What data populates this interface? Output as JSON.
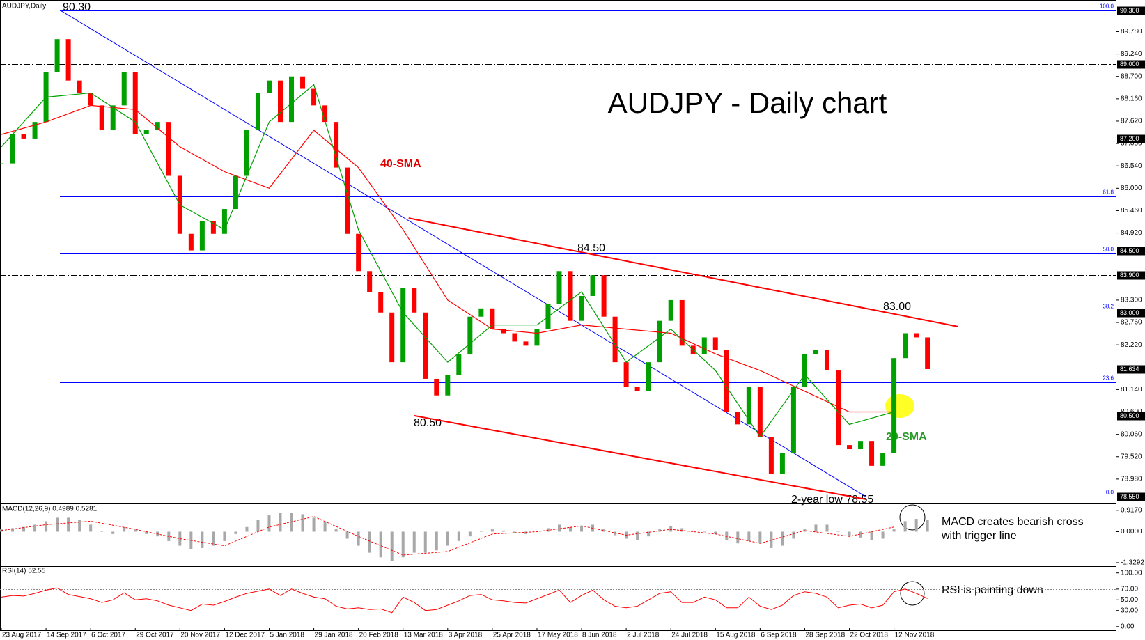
{
  "chart_data": [
    {
      "type": "candlestick",
      "title": "AUDJPY - Daily chart",
      "label": "AUDJPY,Daily",
      "x": [
        0,
        4,
        8,
        12,
        16,
        20,
        24,
        28,
        32,
        36,
        40,
        44,
        48,
        52,
        56,
        60,
        64,
        68,
        72,
        76,
        80,
        84,
        88,
        92,
        96,
        100,
        104,
        108,
        112,
        116,
        120,
        124,
        128,
        132,
        136,
        140,
        144,
        148,
        152,
        156,
        160,
        164,
        168,
        172,
        176,
        180,
        184,
        188,
        192,
        196,
        200,
        204,
        208,
        212,
        216,
        220,
        224,
        228,
        232,
        236,
        240,
        244,
        248,
        252,
        256,
        260,
        264,
        268,
        272,
        276,
        280,
        284,
        288,
        292,
        296,
        300,
        304,
        308,
        312,
        316,
        320,
        324,
        328,
        332
      ],
      "close": [
        86.6,
        87.3,
        87.2,
        87.6,
        88.8,
        89.6,
        88.6,
        88.3,
        88.0,
        87.4,
        88.0,
        88.8,
        87.3,
        87.4,
        87.6,
        86.3,
        84.9,
        84.5,
        85.2,
        84.9,
        85.5,
        86.3,
        87.4,
        88.3,
        88.6,
        87.6,
        88.7,
        88.4,
        88.0,
        87.6,
        86.5,
        84.9,
        84.0,
        83.5,
        83.0,
        81.8,
        83.6,
        83.0,
        81.4,
        81.0,
        81.5,
        82.0,
        82.9,
        83.1,
        82.6,
        82.5,
        82.3,
        82.2,
        82.6,
        83.2,
        84.0,
        82.8,
        83.4,
        83.9,
        82.9,
        81.8,
        81.2,
        81.1,
        81.8,
        82.8,
        83.3,
        82.2,
        82.0,
        82.4,
        82.1,
        80.6,
        80.3,
        81.2,
        80.0,
        79.1,
        79.6,
        81.2,
        82.0,
        82.1,
        81.6,
        79.8,
        79.7,
        79.9,
        79.3,
        79.6,
        81.9,
        82.5,
        82.4,
        81.634
      ],
      "up_color": "#00a000",
      "down_color": "#ff0000",
      "xlim": [
        0,
        400
      ],
      "ylim": [
        78.44,
        90.41
      ],
      "xticks": [
        {
          "value": 0,
          "label": "23 Aug 2017"
        },
        {
          "value": 16,
          "label": "14 Sep 2017"
        },
        {
          "value": 32,
          "label": "6 Oct 2017"
        },
        {
          "value": 48,
          "label": "29 Oct 2017"
        },
        {
          "value": 64,
          "label": "20 Nov 2017"
        },
        {
          "value": 80,
          "label": "12 Dec 2017"
        },
        {
          "value": 96,
          "label": "5 Jan 2018"
        },
        {
          "value": 112,
          "label": "29 Jan 2018"
        },
        {
          "value": 128,
          "label": "20 Feb 2018"
        },
        {
          "value": 144,
          "label": "13 Mar 2018"
        },
        {
          "value": 160,
          "label": "3 Apr 2018"
        },
        {
          "value": 176,
          "label": "25 Apr 2018"
        },
        {
          "value": 192,
          "label": "17 May 2018"
        },
        {
          "value": 208,
          "label": "8 Jun 2018"
        },
        {
          "value": 224,
          "label": "2 Jul 2018"
        },
        {
          "value": 240,
          "label": "24 Jul 2018"
        },
        {
          "value": 256,
          "label": "15 Aug 2018"
        },
        {
          "value": 272,
          "label": "6 Sep 2018"
        },
        {
          "value": 288,
          "label": "28 Sep 2018"
        },
        {
          "value": 304,
          "label": "22 Oct 2018"
        },
        {
          "value": 320,
          "label": "12 Nov 2018"
        }
      ],
      "yticks": [
        {
          "value": 78.98,
          "label": "78.980"
        },
        {
          "value": 79.52,
          "label": "79.520"
        },
        {
          "value": 80.06,
          "label": "80.060"
        },
        {
          "value": 80.6,
          "label": "80.600"
        },
        {
          "value": 81.14,
          "label": "81.140"
        },
        {
          "value": 82.22,
          "label": "82.220"
        },
        {
          "value": 82.76,
          "label": "82.760"
        },
        {
          "value": 83.3,
          "label": "83.300"
        },
        {
          "value": 84.92,
          "label": "84.920"
        },
        {
          "value": 85.46,
          "label": "85.460"
        },
        {
          "value": 86,
          "label": "86.000"
        },
        {
          "value": 86.54,
          "label": "86.540"
        },
        {
          "value": 87.08,
          "label": "87.080"
        },
        {
          "value": 87.62,
          "label": "87.620"
        },
        {
          "value": 88.16,
          "label": "88.160"
        },
        {
          "value": 88.7,
          "label": "88.700"
        },
        {
          "value": 89.24,
          "label": "89.240"
        },
        {
          "value": 89.78,
          "label": "89.780"
        }
      ],
      "levels": [
        {
          "value": 90.3,
          "label": "90.300",
          "dashed": false
        },
        {
          "value": 89,
          "label": "89.000",
          "dashed": true
        },
        {
          "value": 87.2,
          "label": "87.200",
          "dashed": true
        },
        {
          "value": 84.5,
          "label": "84.500",
          "dashed": true
        },
        {
          "value": 83.9,
          "label": "83.900",
          "dashed": true
        },
        {
          "value": 83,
          "label": "83.000",
          "dashed": true
        },
        {
          "value": 81.634,
          "label": "81.634",
          "dashed": false
        },
        {
          "value": 80.5,
          "label": "80.500",
          "dashed": true
        },
        {
          "value": 78.55,
          "label": "78.550",
          "dashed": false
        }
      ],
      "fib_color": "#0000ff",
      "fib_start": 21,
      "fib": [
        {
          "level": "100.0",
          "price": 90.3
        },
        {
          "level": "61.8",
          "price": 85.81
        },
        {
          "level": "50.0",
          "price": 84.43
        },
        {
          "level": "38.2",
          "price": 83.04
        },
        {
          "level": "23.6",
          "price": 81.32
        },
        {
          "level": "0.0",
          "price": 78.55
        }
      ],
      "trendlines": [
        {
          "color": "#0000ff",
          "x": [
            21,
            310
          ],
          "y": [
            90.3,
            78.55
          ]
        },
        {
          "color": "#ff0000",
          "x": [
            146,
            343
          ],
          "y": [
            85.28,
            82.66
          ]
        },
        {
          "color": "#ff0000",
          "x": [
            148,
            310
          ],
          "y": [
            80.51,
            78.49
          ]
        }
      ],
      "sma": [
        {
          "name": "40-SMA",
          "color": "#ff0000",
          "x": [
            0,
            16,
            32,
            48,
            64,
            80,
            96,
            112,
            128,
            144,
            160,
            176,
            192,
            208,
            224,
            240,
            256,
            272,
            288,
            304,
            320
          ],
          "values": [
            87.3,
            87.6,
            88.0,
            87.9,
            87.0,
            86.4,
            86.0,
            87.4,
            86.5,
            85.0,
            83.3,
            82.6,
            82.5,
            82.7,
            82.6,
            82.5,
            82.0,
            81.6,
            81.1,
            80.6,
            80.6
          ]
        },
        {
          "name": "20-SMA",
          "color": "#00a000",
          "x": [
            0,
            16,
            32,
            48,
            64,
            80,
            96,
            112,
            128,
            144,
            160,
            176,
            192,
            208,
            224,
            240,
            256,
            272,
            288,
            304,
            320
          ],
          "values": [
            87.0,
            88.2,
            88.3,
            87.6,
            85.6,
            85.0,
            87.6,
            88.5,
            85.0,
            83.0,
            81.8,
            82.7,
            82.7,
            83.5,
            81.8,
            82.6,
            81.6,
            80.0,
            81.5,
            80.3,
            80.6
          ]
        }
      ],
      "annotations": {
        "high": "90.30",
        "peak": "84.50",
        "resistance": "83.00",
        "low": "80.50",
        "low_2y": "2-year low 78.55"
      }
    },
    {
      "type": "macd",
      "label": "MACD(12,26,9) 0.4989 0.5281",
      "hist_color": "#a8a8a8",
      "values": [
        0.1,
        0.15,
        0.2,
        0.3,
        0.45,
        0.6,
        0.6,
        0.5,
        0.3,
        0.0,
        -0.1,
        0.2,
        0.1,
        -0.1,
        -0.2,
        -0.4,
        -0.6,
        -0.75,
        -0.7,
        -0.6,
        -0.4,
        -0.1,
        0.2,
        0.5,
        0.7,
        0.8,
        0.8,
        0.75,
        0.6,
        0.4,
        0.1,
        -0.3,
        -0.6,
        -0.9,
        -1.1,
        -1.25,
        -1.1,
        -0.9,
        -0.9,
        -0.8,
        -0.6,
        -0.4,
        -0.2,
        0.0,
        0.1,
        0.05,
        -0.05,
        -0.1,
        0.0,
        0.15,
        0.3,
        0.2,
        0.25,
        0.3,
        0.1,
        -0.15,
        -0.3,
        -0.35,
        -0.2,
        0.1,
        0.25,
        0.15,
        0.05,
        0.0,
        -0.1,
        -0.35,
        -0.5,
        -0.4,
        -0.5,
        -0.7,
        -0.6,
        -0.3,
        0.1,
        0.3,
        0.3,
        0.0,
        -0.2,
        -0.25,
        -0.35,
        -0.3,
        0.1,
        0.45,
        0.55,
        0.4989
      ],
      "signal": {
        "color": "#ff0000",
        "x": [
          0,
          16,
          32,
          48,
          64,
          80,
          96,
          112,
          128,
          144,
          160,
          176,
          192,
          208,
          224,
          240,
          256,
          272,
          288,
          304,
          320
        ],
        "values": [
          0.05,
          0.3,
          0.45,
          0.1,
          -0.3,
          -0.6,
          0.2,
          0.65,
          -0.2,
          -1.0,
          -0.85,
          -0.1,
          0.0,
          0.25,
          -0.15,
          0.1,
          -0.1,
          -0.5,
          0.05,
          -0.2,
          0.2
        ]
      },
      "ylim": [
        -1.45,
        1.15
      ],
      "yticks": [
        {
          "value": 0.917,
          "label": "0.9170"
        },
        {
          "value": 0,
          "label": "0.0000"
        },
        {
          "value": -1.3292,
          "label": "-1.3292"
        }
      ],
      "note": [
        "MACD creates bearish cross",
        "with trigger line"
      ]
    },
    {
      "type": "line",
      "label": "RSI(14) 52.55",
      "color": "#ff0000",
      "values": [
        55,
        58,
        57,
        62,
        68,
        72,
        60,
        56,
        52,
        45,
        50,
        63,
        50,
        52,
        48,
        40,
        35,
        30,
        42,
        40,
        47,
        55,
        62,
        66,
        70,
        58,
        70,
        62,
        55,
        52,
        38,
        33,
        35,
        32,
        33,
        26,
        55,
        45,
        30,
        32,
        40,
        48,
        58,
        60,
        50,
        48,
        45,
        44,
        52,
        60,
        68,
        45,
        58,
        68,
        50,
        38,
        35,
        38,
        50,
        62,
        65,
        45,
        45,
        55,
        50,
        35,
        35,
        55,
        38,
        32,
        40,
        58,
        65,
        62,
        55,
        35,
        40,
        42,
        35,
        40,
        65,
        70,
        62,
        52.55
      ],
      "ylim": [
        -8,
        110
      ],
      "yticks": [
        {
          "value": 100,
          "label": "100.00"
        },
        {
          "value": 70,
          "label": "70.00"
        },
        {
          "value": 50,
          "label": "50.00"
        },
        {
          "value": 30,
          "label": "30.00"
        },
        {
          "value": 0,
          "label": "0.00"
        }
      ],
      "levels": [
        70,
        50,
        30
      ],
      "note": "RSI is pointing down"
    }
  ]
}
